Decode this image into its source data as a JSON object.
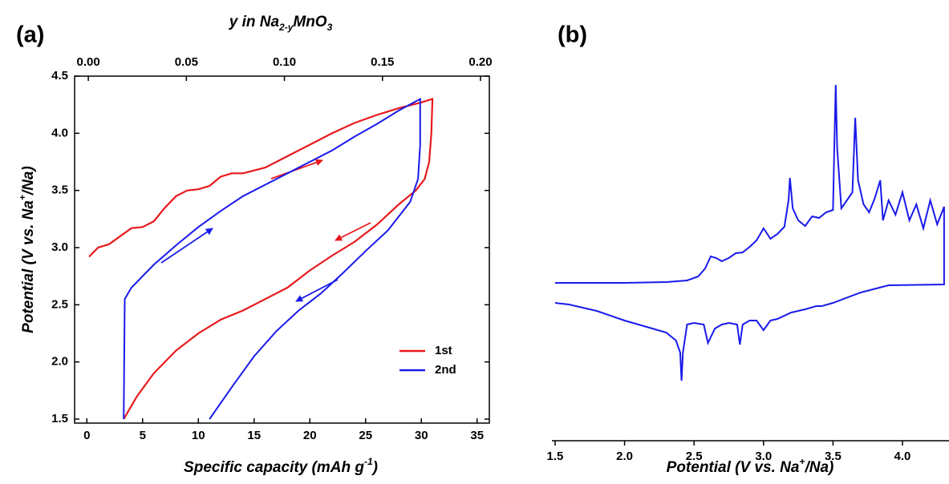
{
  "chart_data": [
    {
      "type": "line",
      "label": "(a)",
      "xlabel": [
        "Specific capacity (mAh g",
        "-1",
        ")"
      ],
      "ylabel": [
        "Potential (V vs. Na",
        "+",
        "/Na)"
      ],
      "x2label": [
        "y in Na",
        "2-y",
        "MnO",
        "3"
      ],
      "xlim": [
        -1.1,
        36.1
      ],
      "xticks": [
        0,
        5,
        10,
        15,
        20,
        25,
        30,
        35
      ],
      "x2lim": [
        -0.007,
        0.2045
      ],
      "x2ticks": [
        {
          "value": 0,
          "label": "0.00"
        },
        {
          "value": 0.05,
          "label": "0.05"
        },
        {
          "value": 0.1,
          "label": "0.10"
        },
        {
          "value": 0.15,
          "label": "0.15"
        },
        {
          "value": 0.2,
          "label": "0.20"
        }
      ],
      "ylim": [
        1.465,
        4.5
      ],
      "yticks": [
        1.5,
        {
          "value": 2,
          "label": "2.0"
        },
        2.5,
        {
          "value": 3,
          "label": "3.0"
        },
        3.5,
        {
          "value": 4,
          "label": "4.0"
        },
        4.5
      ],
      "legend": "lower right",
      "series": [
        {
          "name": "1st",
          "color": "#e8191c",
          "x": [
            0.2,
            1,
            2,
            3,
            4,
            5,
            6,
            7,
            8,
            9,
            10,
            11,
            12,
            13,
            14,
            16,
            18,
            20,
            22,
            24,
            26,
            28,
            30,
            31,
            30.9,
            30.7,
            30.3,
            29.5,
            28,
            26,
            24,
            22,
            20,
            18,
            16,
            14,
            12,
            10,
            8,
            6,
            4.5,
            3.3
          ],
          "values": [
            2.92,
            3.0,
            3.03,
            3.1,
            3.17,
            3.18,
            3.23,
            3.35,
            3.45,
            3.5,
            3.51,
            3.54,
            3.62,
            3.65,
            3.65,
            3.7,
            3.8,
            3.9,
            4.0,
            4.09,
            4.16,
            4.22,
            4.27,
            4.3,
            4.0,
            3.75,
            3.6,
            3.5,
            3.38,
            3.2,
            3.05,
            2.93,
            2.8,
            2.65,
            2.55,
            2.45,
            2.37,
            2.25,
            2.1,
            1.9,
            1.7,
            1.5
          ]
        },
        {
          "name": "2nd",
          "color": "#1a1aeb",
          "x": [
            3.3,
            3.4,
            4,
            6,
            8,
            10,
            12,
            14,
            16,
            18,
            20,
            22,
            24,
            26,
            28,
            29.9,
            29.9,
            29.7,
            29,
            27,
            25,
            23,
            21,
            19,
            17,
            15,
            13,
            11
          ],
          "values": [
            1.5,
            2.55,
            2.65,
            2.85,
            3.02,
            3.18,
            3.32,
            3.45,
            3.55,
            3.65,
            3.75,
            3.85,
            3.97,
            4.08,
            4.2,
            4.3,
            3.9,
            3.6,
            3.4,
            3.15,
            2.97,
            2.78,
            2.6,
            2.45,
            2.27,
            2.05,
            1.78,
            1.5
          ]
        }
      ]
    },
    {
      "type": "line",
      "label": "(b)",
      "xlabel": [
        "Potential (V vs. Na",
        "+",
        "/Na)"
      ],
      "xlim": [
        1.477,
        4.335
      ],
      "xticks": [
        1.5,
        {
          "value": 2,
          "label": "2.0"
        },
        2.5,
        {
          "value": 3,
          "label": "3.0"
        },
        3.5,
        {
          "value": 4,
          "label": "4.0"
        }
      ],
      "ylim": [
        0,
        450
      ],
      "series": [
        {
          "color": "#1a1aeb",
          "x": [
            1.5,
            2.0,
            2.3,
            2.45,
            2.53,
            2.58,
            2.62,
            2.66,
            2.7,
            2.75,
            2.8,
            2.85,
            2.9,
            2.95,
            3.0,
            3.02,
            3.05,
            3.1,
            3.15,
            3.18,
            3.19,
            3.21,
            3.25,
            3.3,
            3.35,
            3.4,
            3.45,
            3.5,
            3.51,
            3.52,
            3.53,
            3.56,
            3.6,
            3.64,
            3.66,
            3.68,
            3.72,
            3.76,
            3.8,
            3.84,
            3.86,
            3.9,
            3.95,
            4.0,
            4.05,
            4.1,
            4.15,
            4.2,
            4.25,
            4.3,
            4.3,
            3.9,
            3.7,
            3.5,
            3.42,
            3.38,
            3.3,
            3.2,
            3.1,
            3.05,
            3.0,
            2.95,
            2.9,
            2.85,
            2.83,
            2.81,
            2.75,
            2.7,
            2.65,
            2.6,
            2.57,
            2.5,
            2.45,
            2.42,
            2.41,
            2.4,
            2.37,
            2.3,
            2.2,
            2.0,
            1.8,
            1.6,
            1.5
          ],
          "values": [
            197,
            197,
            198,
            200,
            205,
            215,
            230,
            228,
            224,
            228,
            234,
            235,
            242,
            250,
            265,
            260,
            252,
            258,
            267,
            300,
            328,
            290,
            275,
            268,
            280,
            278,
            285,
            288,
            370,
            444,
            365,
            290,
            300,
            310,
            403,
            325,
            295,
            285,
            302,
            325,
            275,
            300,
            282,
            310,
            275,
            295,
            265,
            300,
            270,
            292,
            195,
            194,
            185,
            172,
            168,
            168,
            164,
            160,
            152,
            150,
            138,
            150,
            150,
            145,
            120,
            145,
            147,
            145,
            140,
            122,
            145,
            147,
            145,
            110,
            75,
            110,
            125,
            135,
            140,
            150,
            162,
            170,
            172
          ]
        }
      ]
    }
  ]
}
